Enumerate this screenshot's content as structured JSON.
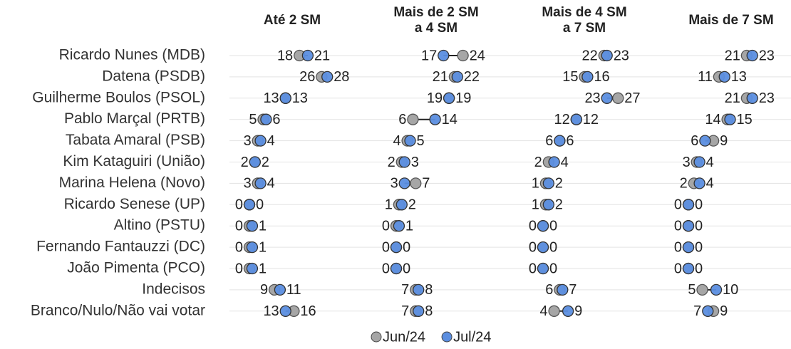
{
  "chart_data": {
    "type": "dot",
    "categories": [
      "Ricardo Nunes (MDB)",
      "Datena (PSDB)",
      "Guilherme Boulos (PSOL)",
      "Pablo Marçal (PRTB)",
      "Tabata Amaral (PSB)",
      "Kim Kataguiri (União)",
      "Marina Helena (Novo)",
      "Ricardo Senese (UP)",
      "Altino (PSTU)",
      "Fernando Fantauzzi (DC)",
      "João Pimenta (PCO)",
      "Indecisos",
      "Branco/Nulo/Não vai votar"
    ],
    "series": [
      {
        "name": "Jun/24",
        "color": "#a6a6a6"
      },
      {
        "name": "Jul/24",
        "color": "#5b8ee0"
      }
    ],
    "panels": [
      {
        "title": [
          "Até 2 SM"
        ],
        "series": [
          {
            "values": [
              18,
              26,
              13,
              5,
              3,
              2,
              3,
              0,
              0,
              0,
              0,
              9,
              16
            ]
          },
          {
            "values": [
              21,
              28,
              13,
              6,
              4,
              2,
              4,
              0,
              1,
              1,
              1,
              11,
              13
            ]
          }
        ]
      },
      {
        "title": [
          "Mais de 2 SM",
          "a 4 SM"
        ],
        "series": [
          {
            "values": [
              24,
              21,
              19,
              6,
              4,
              2,
              7,
              1,
              0,
              0,
              0,
              7,
              7
            ]
          },
          {
            "values": [
              17,
              22,
              19,
              14,
              5,
              3,
              3,
              2,
              1,
              0,
              0,
              8,
              8
            ]
          }
        ]
      },
      {
        "title": [
          "Mais de 4 SM",
          "a 7 SM"
        ],
        "series": [
          {
            "values": [
              22,
              15,
              27,
              12,
              6,
              2,
              1,
              1,
              0,
              0,
              0,
              6,
              4
            ]
          },
          {
            "values": [
              23,
              16,
              23,
              12,
              6,
              4,
              2,
              2,
              0,
              0,
              0,
              7,
              9
            ]
          }
        ]
      },
      {
        "title": [
          "Mais de 7 SM"
        ],
        "series": [
          {
            "values": [
              21,
              11,
              21,
              14,
              9,
              3,
              2,
              0,
              0,
              0,
              0,
              5,
              9
            ]
          },
          {
            "values": [
              23,
              13,
              23,
              15,
              6,
              4,
              4,
              0,
              0,
              0,
              0,
              10,
              7
            ]
          }
        ]
      }
    ]
  }
}
